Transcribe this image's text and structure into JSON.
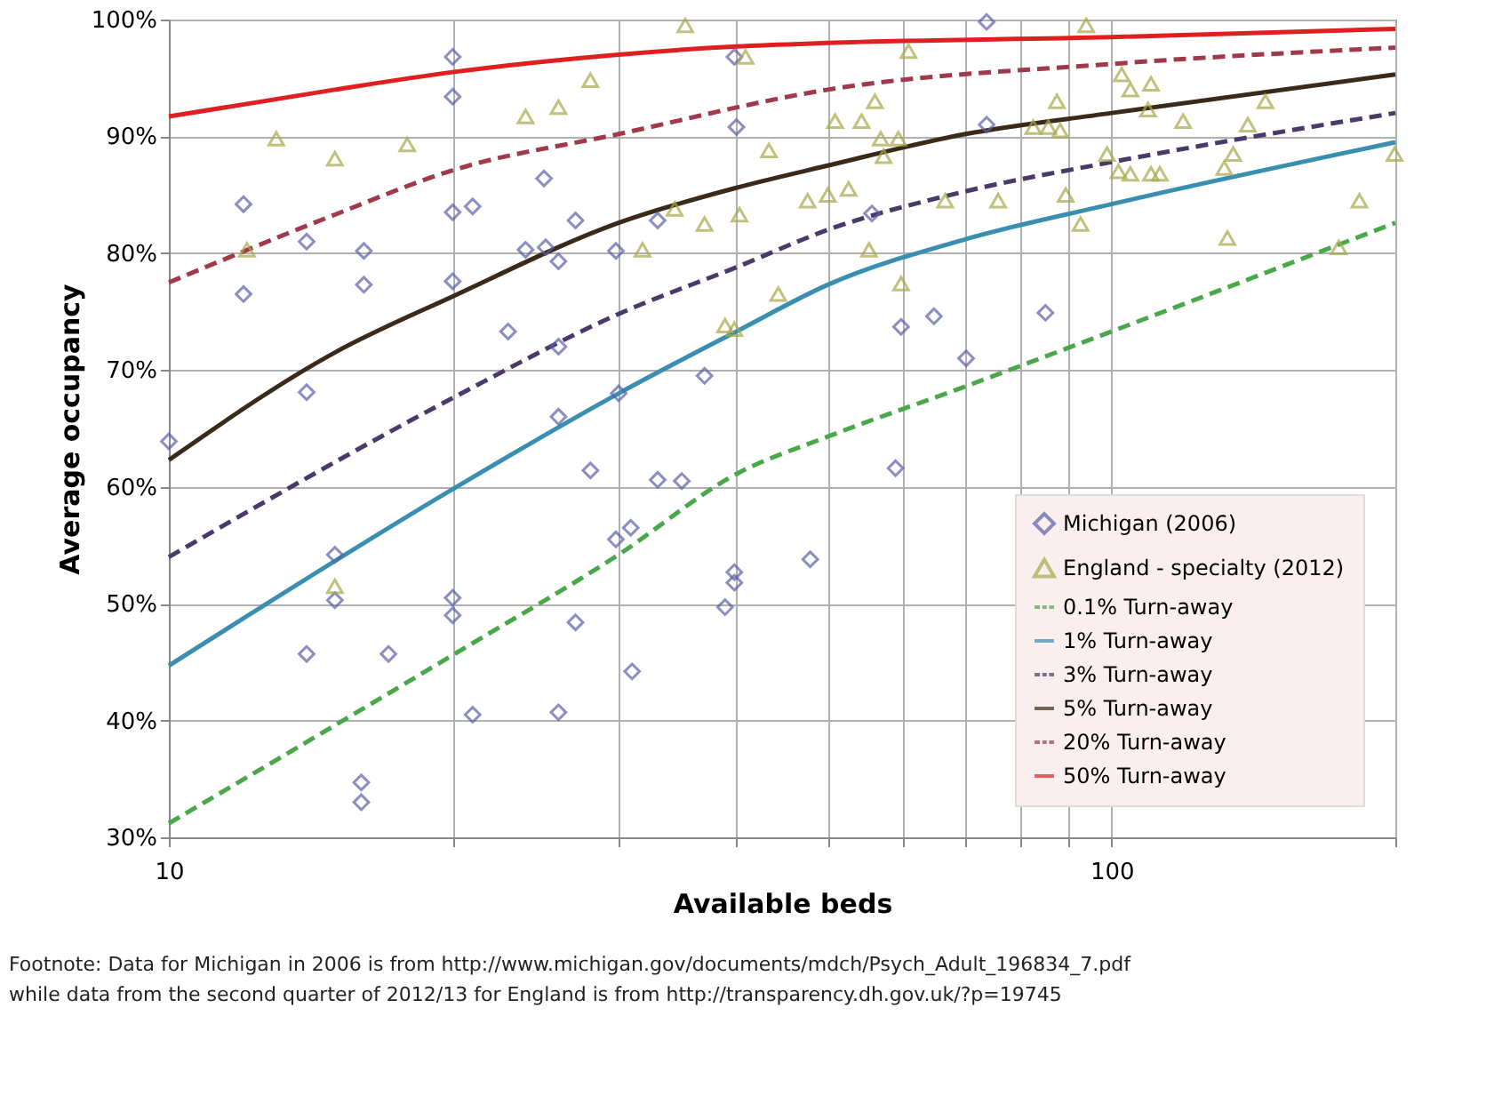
{
  "chart_data": {
    "type": "scatter",
    "xlabel": "Available beds",
    "ylabel": "Average occupancy",
    "log": "x",
    "xlim": [
      10,
      200
    ],
    "xticks": [
      10,
      {
        "value": 20,
        "label": null
      },
      {
        "value": 30,
        "label": null
      },
      {
        "value": 40,
        "label": null
      },
      {
        "value": 50,
        "label": null
      },
      {
        "value": 60,
        "label": null
      },
      {
        "value": 70,
        "label": null
      },
      {
        "value": 80,
        "label": null
      },
      {
        "value": 90,
        "label": null
      },
      100,
      {
        "value": 200,
        "label": null
      }
    ],
    "ylim": [
      30,
      100
    ],
    "yticks": [
      {
        "value": 30,
        "label": "30%"
      },
      {
        "value": 40,
        "label": "40%"
      },
      {
        "value": 50,
        "label": "50%"
      },
      {
        "value": 60,
        "label": "60%"
      },
      {
        "value": 70,
        "label": "70%"
      },
      {
        "value": 80,
        "label": "80%"
      },
      {
        "value": 90,
        "label": "90%"
      },
      {
        "value": 100,
        "label": "100%"
      }
    ],
    "grid": true,
    "legend": "bottom right",
    "series": [
      {
        "name": "Michigan (2006)",
        "marker": "diamond",
        "color": "#5a5fa8",
        "x": [
          20.0,
          20.0,
          12.0,
          12.0,
          14.0,
          16.1,
          16.1,
          20.0,
          21.0,
          20.0,
          25.0,
          27.0,
          23.9,
          25.1,
          25.9,
          29.8,
          22.9,
          25.9,
          14.0,
          25.9,
          28.0,
          10.0,
          30.0,
          73.7,
          39.8,
          40.0,
          33.0,
          55.7,
          73.7,
          59.8,
          64.8,
          85.1,
          70.1,
          37.0,
          59.0,
          33.0,
          35.0,
          15.0,
          15.0,
          14.0,
          17.1,
          16.0,
          16.0,
          20.0,
          20.0,
          21.0,
          25.9,
          27.0,
          29.8,
          30.9,
          31.0,
          38.9,
          39.8,
          39.8,
          47.9
        ],
        "values": [
          96.8,
          93.4,
          84.2,
          76.5,
          81.0,
          80.2,
          77.3,
          83.5,
          84.0,
          77.6,
          86.4,
          82.8,
          80.3,
          80.5,
          79.3,
          80.2,
          73.3,
          72.0,
          68.1,
          66.0,
          61.4,
          63.9,
          68.0,
          99.8,
          96.8,
          90.8,
          82.8,
          83.4,
          91.0,
          73.7,
          74.6,
          74.9,
          71.0,
          69.5,
          61.6,
          60.6,
          60.5,
          54.2,
          50.3,
          45.7,
          45.7,
          34.7,
          33.0,
          50.5,
          49.0,
          40.5,
          40.7,
          48.4,
          55.5,
          56.5,
          44.2,
          49.7,
          51.8,
          52.7,
          53.8
        ]
      },
      {
        "name": "England - specialty (2012)",
        "marker": "triangle",
        "color": "#a8a84a",
        "x": [
          13.0,
          15.0,
          17.9,
          12.1,
          23.9,
          25.9,
          28.0,
          35.3,
          40.9,
          60.9,
          94.0,
          56.1,
          50.9,
          54.3,
          43.3,
          56.9,
          59.4,
          57.3,
          47.6,
          50.0,
          52.6,
          34.4,
          37.0,
          40.3,
          31.8,
          55.3,
          59.8,
          44.3,
          38.9,
          39.8,
          66.6,
          75.8,
          89.4,
          92.7,
          82.6,
          85.7,
          88.2,
          87.5,
          98.9,
          101.7,
          104.7,
          110.1,
          112.5,
          102.5,
          104.7,
          110.1,
          109.3,
          119.1,
          131.7,
          134.6,
          139.5,
          145.6,
          132.7,
          174.2,
          183.2,
          199.6,
          15.0
        ],
        "values": [
          89.8,
          88.1,
          89.3,
          80.3,
          91.7,
          92.5,
          94.8,
          99.5,
          96.8,
          97.3,
          99.5,
          93.0,
          91.3,
          91.3,
          88.8,
          89.8,
          89.8,
          88.3,
          84.5,
          85.0,
          85.5,
          83.8,
          82.5,
          83.3,
          80.3,
          80.3,
          77.4,
          76.5,
          73.8,
          73.5,
          84.5,
          84.5,
          85.0,
          82.5,
          90.8,
          90.8,
          90.5,
          93.0,
          88.5,
          87.0,
          86.8,
          86.8,
          86.8,
          95.3,
          94.0,
          94.5,
          92.3,
          91.3,
          87.3,
          88.5,
          91.0,
          93.0,
          81.3,
          80.5,
          84.5,
          88.5,
          51.5
        ]
      },
      {
        "name": "0.1% Turn-away",
        "type": "line",
        "line_style": "dashed",
        "color": "#4aa84a",
        "x": [
          10,
          20,
          30,
          40,
          50,
          70,
          100,
          200
        ],
        "values": [
          31.2,
          45.6,
          54.2,
          61.1,
          64.3,
          68.6,
          73.3,
          82.6
        ]
      },
      {
        "name": "1% Turn-away",
        "type": "line",
        "line_style": "solid",
        "color": "#3a8fb0",
        "x": [
          10,
          20,
          30,
          40,
          50,
          70,
          100,
          200
        ],
        "values": [
          44.7,
          59.8,
          68.0,
          73.3,
          77.3,
          81.2,
          84.2,
          89.5
        ]
      },
      {
        "name": "3% Turn-away",
        "type": "line",
        "line_style": "dashed",
        "color": "#4a3a6a",
        "x": [
          10,
          20,
          30,
          40,
          50,
          70,
          100,
          200
        ],
        "values": [
          54.0,
          67.6,
          74.8,
          78.8,
          82.0,
          85.3,
          87.8,
          92.0
        ]
      },
      {
        "name": "5% Turn-away",
        "type": "line",
        "line_style": "solid",
        "color": "#3a2a1a",
        "x": [
          10,
          15,
          20,
          30,
          40,
          50,
          70,
          100,
          200
        ],
        "values": [
          62.3,
          71.5,
          76.3,
          82.6,
          85.6,
          87.5,
          90.2,
          92.0,
          95.3
        ]
      },
      {
        "name": "20% Turn-away",
        "type": "line",
        "line_style": "dashed",
        "color": "#a03a4a",
        "x": [
          10,
          15,
          20,
          30,
          50,
          100,
          200
        ],
        "values": [
          77.5,
          83.3,
          87.1,
          90.2,
          94.0,
          96.2,
          97.6
        ]
      },
      {
        "name": "50% Turn-away",
        "type": "line",
        "line_style": "solid",
        "color": "#e02020",
        "x": [
          10,
          15,
          20,
          30,
          40,
          50,
          100,
          200
        ],
        "values": [
          91.7,
          94.0,
          95.5,
          97.0,
          97.7,
          98.0,
          98.5,
          99.2
        ]
      }
    ],
    "annotations": [
      "Footnote: Data for Michigan in 2006 is from http://www.michigan.gov/documents/mdch/Psych_Adult_196834_7.pdf",
      "while data from the second quarter of 2012/13 for England is from http://transparency.dh.gov.uk/?p=19745"
    ]
  }
}
